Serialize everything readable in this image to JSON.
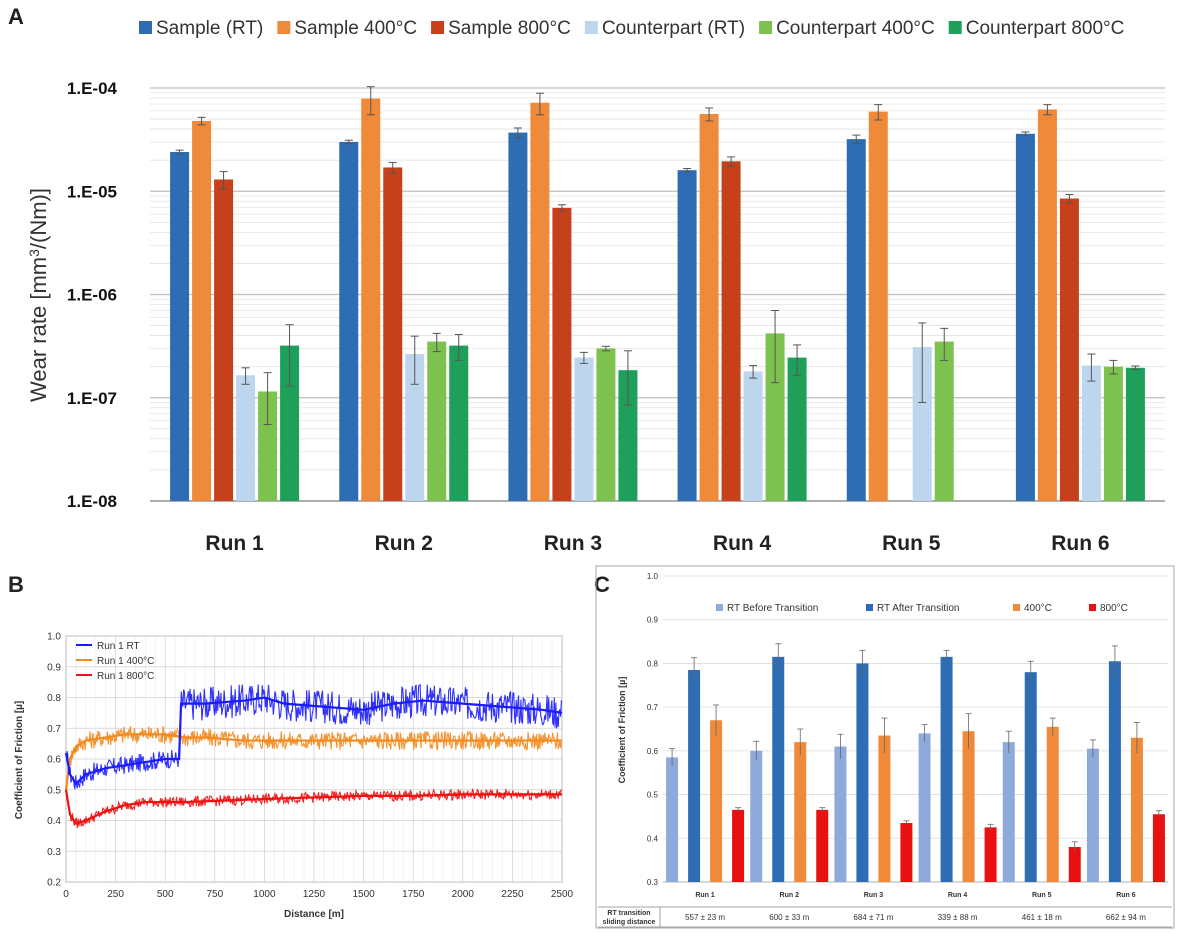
{
  "panel_labels": {
    "a": "A",
    "b": "B",
    "c": "C"
  },
  "chart_data": [
    {
      "type": "bar",
      "panel": "A",
      "ylabel_pre": "Wear rate [mm",
      "ylabel_sup": "3",
      "ylabel_post": "/(Nm)]",
      "yscale": "log",
      "ylim": [
        1e-08,
        0.0001
      ],
      "ytick_labels": [
        "1.E-08",
        "1.E-07",
        "1.E-06",
        "1.E-05",
        "1.E-04"
      ],
      "grid": true,
      "legend": "top",
      "categories": [
        "Run 1",
        "Run 2",
        "Run 3",
        "Run 4",
        "Run 5",
        "Run 6"
      ],
      "series": [
        {
          "name": "Sample (RT)",
          "color": "#2e6db4",
          "values": [
            2.4e-05,
            3e-05,
            3.7e-05,
            1.6e-05,
            3.2e-05,
            3.6e-05
          ],
          "errors": [
            1e-06,
            1.2e-06,
            4e-06,
            6e-07,
            3e-06,
            1.5e-06
          ]
        },
        {
          "name": "Sample 400°C",
          "color": "#ee8a3a",
          "values": [
            4.8e-05,
            7.9e-05,
            7.2e-05,
            5.6e-05,
            5.9e-05,
            6.2e-05
          ],
          "errors": [
            4e-06,
            2.4e-05,
            1.7e-05,
            8e-06,
            1e-05,
            7e-06
          ]
        },
        {
          "name": "Sample 800°C",
          "color": "#c6401c",
          "values": [
            1.3e-05,
            1.7e-05,
            6.9e-06,
            1.95e-05,
            null,
            8.5e-06
          ],
          "errors": [
            2.5e-06,
            2e-06,
            5e-07,
            2e-06,
            null,
            8e-07
          ]
        },
        {
          "name": "Counterpart (RT)",
          "color": "#bdd6ee",
          "values": [
            1.65e-07,
            2.65e-07,
            2.45e-07,
            1.8e-07,
            3.1e-07,
            2.05e-07
          ],
          "errors": [
            3e-08,
            1.3e-07,
            3e-08,
            2.5e-08,
            2.2e-07,
            6e-08
          ]
        },
        {
          "name": "Counterpart 400°C",
          "color": "#7dc24e",
          "values": [
            1.15e-07,
            3.5e-07,
            3e-07,
            4.2e-07,
            3.5e-07,
            2e-07
          ],
          "errors": [
            6e-08,
            7e-08,
            1.5e-08,
            2.8e-07,
            1.2e-07,
            3e-08
          ]
        },
        {
          "name": "Counterpart 800°C",
          "color": "#1fa05a",
          "values": [
            3.2e-07,
            3.2e-07,
            1.85e-07,
            2.45e-07,
            null,
            1.95e-07
          ],
          "errors": [
            1.9e-07,
            9e-08,
            1e-07,
            8e-08,
            null,
            8e-09
          ]
        }
      ]
    },
    {
      "type": "line",
      "panel": "B",
      "xlabel": "Distance [m]",
      "ylabel": "Coefficient of Friction [µ]",
      "xlim": [
        0,
        2500
      ],
      "ylim": [
        0.2,
        1.0
      ],
      "xticks": [
        "0",
        "250",
        "500",
        "750",
        "1000",
        "1250",
        "1500",
        "1750",
        "2000",
        "2250",
        "2500"
      ],
      "yticks": [
        "0.2",
        "0.3",
        "0.4",
        "0.5",
        "0.6",
        "0.7",
        "0.8",
        "0.9",
        "1.0"
      ],
      "grid": true,
      "legend": "top-left",
      "series": [
        {
          "name": "Run 1 RT",
          "color": "#1a1aff",
          "x": [
            0,
            20,
            50,
            100,
            200,
            300,
            400,
            500,
            570,
            580,
            700,
            900,
            1000,
            1100,
            1300,
            1500,
            1650,
            1800,
            2000,
            2200,
            2400,
            2500
          ],
          "y": [
            0.62,
            0.55,
            0.52,
            0.55,
            0.57,
            0.58,
            0.59,
            0.6,
            0.6,
            0.78,
            0.78,
            0.79,
            0.8,
            0.78,
            0.77,
            0.76,
            0.78,
            0.79,
            0.78,
            0.77,
            0.76,
            0.75
          ]
        },
        {
          "name": "Run 1 400°C",
          "color": "#f28a1e",
          "x": [
            0,
            20,
            50,
            100,
            200,
            300,
            400,
            500,
            600,
            700,
            900,
            1100,
            1300,
            1500,
            1700,
            1900,
            2100,
            2300,
            2500
          ],
          "y": [
            0.5,
            0.6,
            0.64,
            0.66,
            0.67,
            0.68,
            0.68,
            0.68,
            0.67,
            0.67,
            0.66,
            0.66,
            0.66,
            0.66,
            0.66,
            0.66,
            0.66,
            0.66,
            0.66
          ]
        },
        {
          "name": "Run 1 800°C",
          "color": "#ee1111",
          "x": [
            0,
            20,
            50,
            100,
            200,
            300,
            400,
            600,
            800,
            1000,
            1250,
            1500,
            1750,
            2000,
            2250,
            2500
          ],
          "y": [
            0.5,
            0.42,
            0.39,
            0.4,
            0.43,
            0.45,
            0.46,
            0.46,
            0.465,
            0.47,
            0.475,
            0.48,
            0.48,
            0.485,
            0.485,
            0.485
          ]
        }
      ]
    },
    {
      "type": "bar",
      "panel": "C",
      "ylabel": "Coefficient of Friction [µ]",
      "ylim": [
        0.3,
        1.0
      ],
      "yticks": [
        "0.3",
        "0.4",
        "0.5",
        "0.6",
        "0.7",
        "0.8",
        "0.9",
        "1.0"
      ],
      "grid": true,
      "legend": "top",
      "categories": [
        "Run 1",
        "Run 2",
        "Run 3",
        "Run 4",
        "Run 5",
        "Run 6"
      ],
      "series": [
        {
          "name": "RT Before Transition",
          "color": "#8eaadb",
          "values": [
            0.585,
            0.6,
            0.61,
            0.64,
            0.62,
            0.605
          ],
          "errors": [
            0.02,
            0.022,
            0.028,
            0.02,
            0.025,
            0.02
          ]
        },
        {
          "name": "RT After Transition",
          "color": "#2e6db4",
          "values": [
            0.785,
            0.815,
            0.8,
            0.815,
            0.78,
            0.805
          ],
          "errors": [
            0.028,
            0.03,
            0.03,
            0.015,
            0.025,
            0.035
          ]
        },
        {
          "name": "400°C",
          "color": "#ee8a3a",
          "values": [
            0.67,
            0.62,
            0.635,
            0.645,
            0.655,
            0.63
          ],
          "errors": [
            0.035,
            0.03,
            0.04,
            0.04,
            0.02,
            0.035
          ]
        },
        {
          "name": "800°C",
          "color": "#e81010",
          "values": [
            0.465,
            0.465,
            0.435,
            0.425,
            0.38,
            0.455
          ],
          "errors": [
            0.005,
            0.005,
            0.005,
            0.007,
            0.012,
            0.008
          ]
        }
      ],
      "table": {
        "row_label_line1": "RT transition",
        "row_label_line2": "sliding distance",
        "values": [
          "557 ± 23 m",
          "600 ± 33 m",
          "684 ± 71 m",
          "339 ± 88 m",
          "461 ± 18 m",
          "662 ± 94 m"
        ]
      }
    }
  ]
}
